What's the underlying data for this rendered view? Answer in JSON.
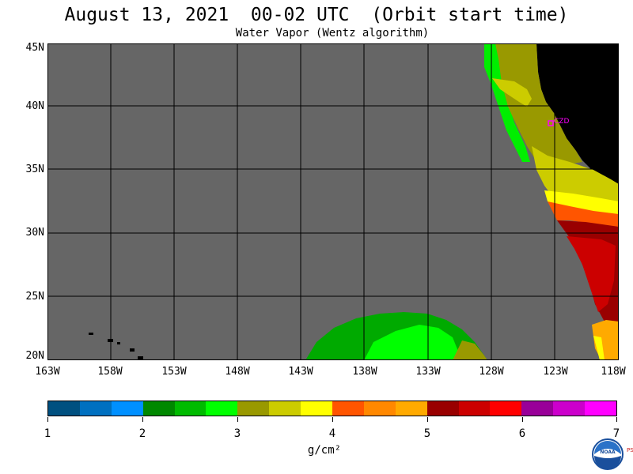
{
  "title": "August 13, 2021  00-02 UTC  (Orbit start time)",
  "subtitle": "Water Vapor (Wentz algorithm)",
  "lat_labels": [
    "45N",
    "40N",
    "35N",
    "30N",
    "25N",
    "20N"
  ],
  "lon_labels": [
    "163W",
    "158W",
    "153W",
    "148W",
    "143W",
    "138W",
    "133W",
    "128W",
    "123W",
    "118W"
  ],
  "station_label": "CZD",
  "colorbar": {
    "colors": [
      "#005080",
      "#0070c0",
      "#0090ff",
      "#008800",
      "#00bb00",
      "#00ff00",
      "#999900",
      "#cccc00",
      "#ffff00",
      "#ff5500",
      "#ff8800",
      "#ffaa00",
      "#990000",
      "#cc0000",
      "#ff0000",
      "#990099",
      "#cc00cc",
      "#ff00ff"
    ],
    "tick_labels": [
      "1",
      "2",
      "3",
      "4",
      "5",
      "6",
      "7"
    ],
    "units": "g/cm²"
  },
  "logo": {
    "name": "NOAA",
    "side_text": "PSL"
  },
  "colors": {
    "no_data": "#666666",
    "land": "#000000",
    "grid": "#000000"
  }
}
